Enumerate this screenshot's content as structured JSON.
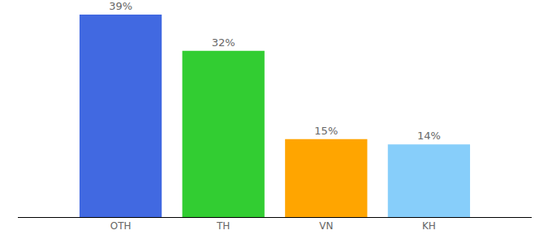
{
  "chart_data": {
    "type": "bar",
    "categories": [
      "OTH",
      "TH",
      "VN",
      "KH"
    ],
    "values": [
      39,
      32,
      15,
      14
    ],
    "value_labels": [
      "39%",
      "32%",
      "15%",
      "14%"
    ],
    "colors": [
      "#4169e1",
      "#32cd32",
      "#ffa500",
      "#87cefa"
    ],
    "ylim": [
      0,
      39
    ],
    "yticks": [],
    "grid": false,
    "data_labels": true,
    "tick_labels": "x"
  }
}
